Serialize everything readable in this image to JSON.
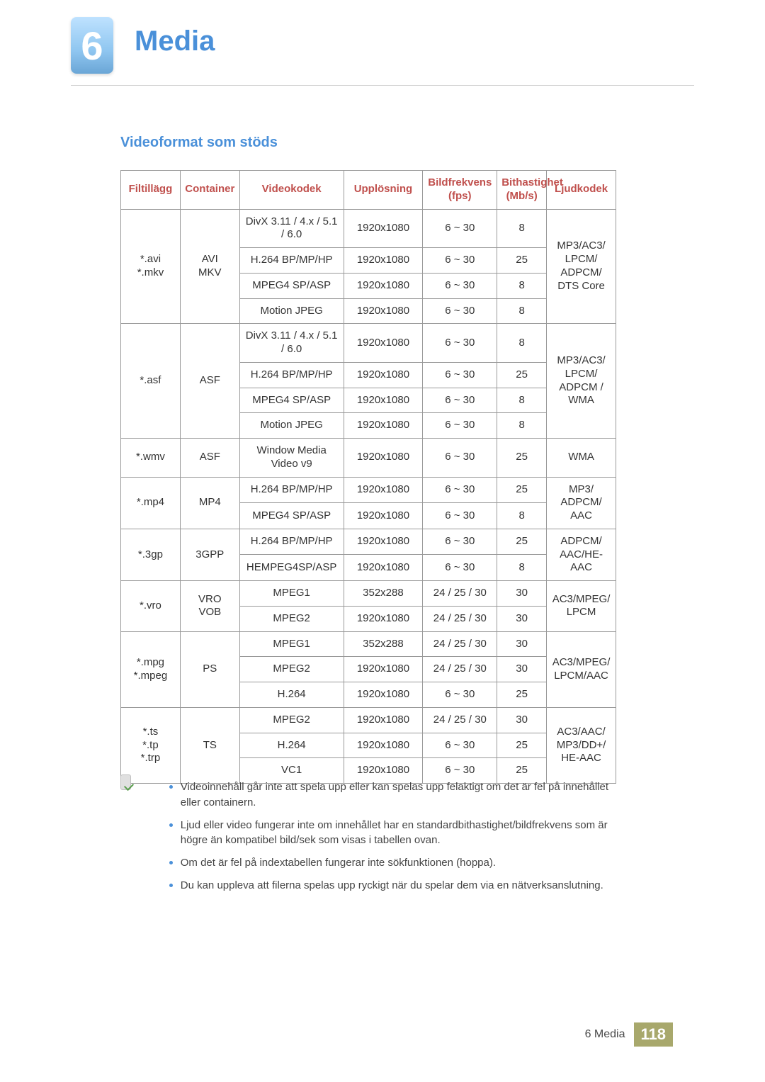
{
  "chapter": {
    "number": "6",
    "title": "Media"
  },
  "section_title": "Videoformat som stöds",
  "table": {
    "headers": {
      "ext": "Filtillägg",
      "container": "Container",
      "codec": "Videokodek",
      "res": "Upplösning",
      "fps": "Bildfrekvens (fps)",
      "bitrate": "Bithastighet (Mb/s)",
      "audio": "Ljudkodek"
    },
    "groups": [
      {
        "ext": "*.avi\n*.mkv",
        "container": "AVI\nMKV",
        "audio": "MP3/AC3/\nLPCM/\nADPCM/\nDTS Core",
        "rows": [
          {
            "codec": "DivX 3.11 / 4.x / 5.1 / 6.0",
            "res": "1920x1080",
            "fps": "6 ~ 30",
            "bit": "8"
          },
          {
            "codec": "H.264 BP/MP/HP",
            "res": "1920x1080",
            "fps": "6 ~ 30",
            "bit": "25"
          },
          {
            "codec": "MPEG4 SP/ASP",
            "res": "1920x1080",
            "fps": "6 ~ 30",
            "bit": "8"
          },
          {
            "codec": "Motion JPEG",
            "res": "1920x1080",
            "fps": "6 ~ 30",
            "bit": "8"
          }
        ]
      },
      {
        "ext": "*.asf",
        "container": "ASF",
        "audio": "MP3/AC3/\nLPCM/\nADPCM /\nWMA",
        "rows": [
          {
            "codec": "DivX 3.11 / 4.x / 5.1 / 6.0",
            "res": "1920x1080",
            "fps": "6 ~ 30",
            "bit": "8"
          },
          {
            "codec": "H.264 BP/MP/HP",
            "res": "1920x1080",
            "fps": "6 ~ 30",
            "bit": "25"
          },
          {
            "codec": "MPEG4 SP/ASP",
            "res": "1920x1080",
            "fps": "6 ~ 30",
            "bit": "8"
          },
          {
            "codec": "Motion JPEG",
            "res": "1920x1080",
            "fps": "6 ~ 30",
            "bit": "8"
          }
        ]
      },
      {
        "ext": "*.wmv",
        "container": "ASF",
        "audio": "WMA",
        "rows": [
          {
            "codec": "Window Media Video v9",
            "res": "1920x1080",
            "fps": "6 ~ 30",
            "bit": "25"
          }
        ]
      },
      {
        "ext": "*.mp4",
        "container": "MP4",
        "audio": "MP3/\nADPCM/\nAAC",
        "rows": [
          {
            "codec": "H.264 BP/MP/HP",
            "res": "1920x1080",
            "fps": "6 ~ 30",
            "bit": "25"
          },
          {
            "codec": "MPEG4 SP/ASP",
            "res": "1920x1080",
            "fps": "6 ~ 30",
            "bit": "8"
          }
        ]
      },
      {
        "ext": "*.3gp",
        "container": "3GPP",
        "audio": "ADPCM/\nAAC/HE-AAC",
        "rows": [
          {
            "codec": "H.264 BP/MP/HP",
            "res": "1920x1080",
            "fps": "6 ~ 30",
            "bit": "25"
          },
          {
            "codec": "HEMPEG4SP/ASP",
            "res": "1920x1080",
            "fps": "6 ~ 30",
            "bit": "8"
          }
        ]
      },
      {
        "ext": "*.vro",
        "container": "VRO\nVOB",
        "audio": "AC3/MPEG/\nLPCM",
        "rows": [
          {
            "codec": "MPEG1",
            "res": "352x288",
            "fps": "24 / 25 / 30",
            "bit": "30"
          },
          {
            "codec": "MPEG2",
            "res": "1920x1080",
            "fps": "24 / 25 / 30",
            "bit": "30"
          }
        ]
      },
      {
        "ext": "*.mpg\n*.mpeg",
        "container": "PS",
        "audio": "AC3/MPEG/\nLPCM/AAC",
        "rows": [
          {
            "codec": "MPEG1",
            "res": "352x288",
            "fps": "24 / 25 / 30",
            "bit": "30"
          },
          {
            "codec": "MPEG2",
            "res": "1920x1080",
            "fps": "24 / 25 / 30",
            "bit": "30"
          },
          {
            "codec": "H.264",
            "res": "1920x1080",
            "fps": "6 ~ 30",
            "bit": "25"
          }
        ]
      },
      {
        "ext": "*.ts\n*.tp\n*.trp",
        "container": "TS",
        "audio": "AC3/AAC/\nMP3/DD+/\nHE-AAC",
        "rows": [
          {
            "codec": "MPEG2",
            "res": "1920x1080",
            "fps": "24 / 25 / 30",
            "bit": "30"
          },
          {
            "codec": "H.264",
            "res": "1920x1080",
            "fps": "6 ~ 30",
            "bit": "25"
          },
          {
            "codec": "VC1",
            "res": "1920x1080",
            "fps": "6 ~ 30",
            "bit": "25"
          }
        ]
      }
    ]
  },
  "notes": [
    "Videoinnehåll går inte att spela upp eller kan spelas upp felaktigt om det är fel på innehållet eller containern.",
    "Ljud eller video fungerar inte om innehållet har en standardbithastighet/bildfrekvens som är högre än kompatibel bild/sek som visas i tabellen ovan.",
    "Om det är fel på indextabellen fungerar inte sökfunktionen (hoppa).",
    "Du kan uppleva att filerna spelas upp ryckigt när du spelar dem via en nätverksanslutning."
  ],
  "footer": {
    "label": "6 Media",
    "page": "118"
  },
  "colors": {
    "accent": "#4a90d9",
    "header_text": "#c0504d",
    "border": "#999999",
    "footer_bg": "#a8a86c"
  }
}
